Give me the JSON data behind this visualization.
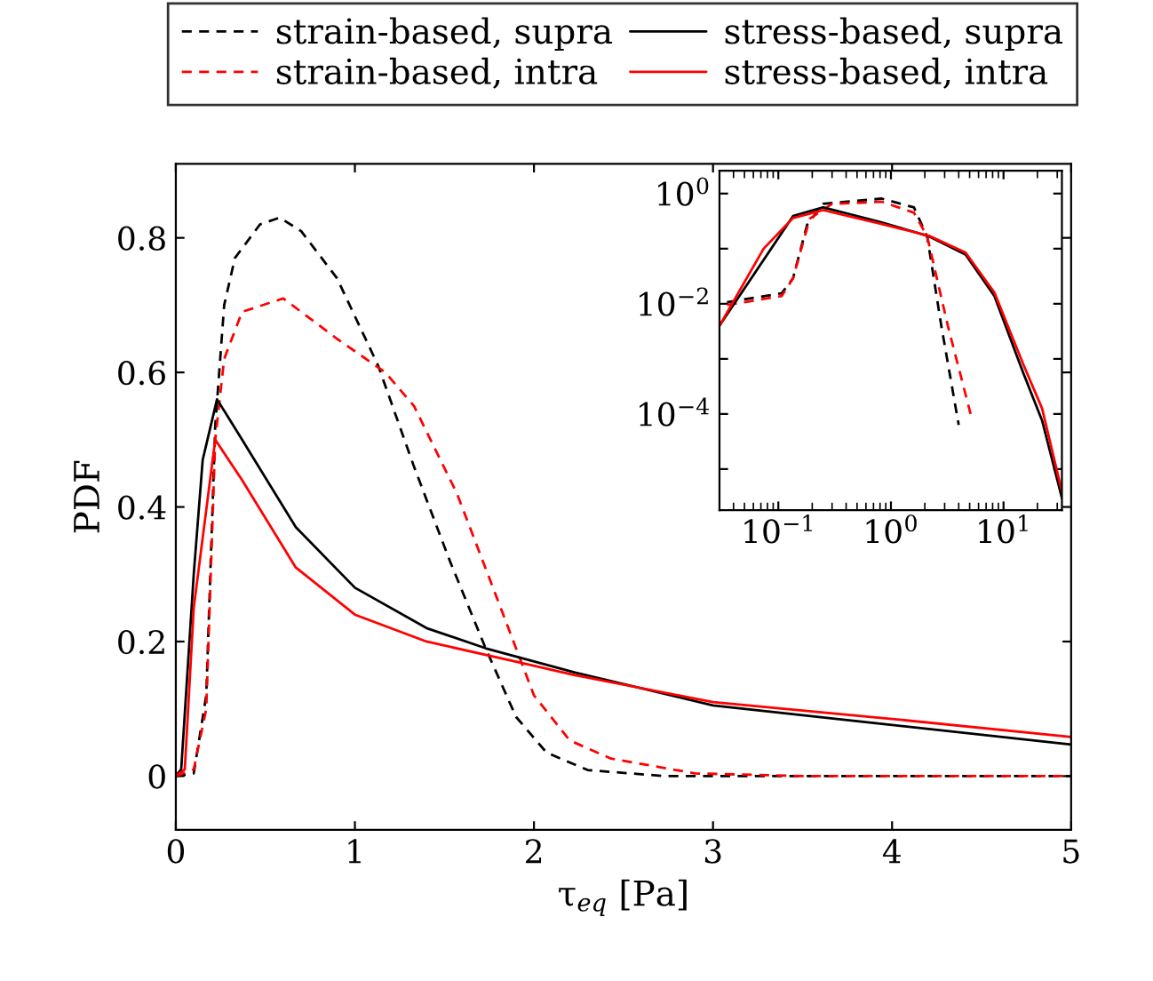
{
  "chart_data": [
    {
      "type": "line",
      "xlabel": "τ$_{eq}$ [Pa]",
      "ylabel": "PDF",
      "xlim": [
        0,
        5
      ],
      "ylim": [
        -0.08,
        0.91
      ],
      "xticks": [
        0,
        1,
        2,
        3,
        4,
        5
      ],
      "yticks": [
        0,
        0.2,
        0.4,
        0.6,
        0.8
      ],
      "grid": false,
      "legend": "top",
      "series": [
        {
          "name": "strain-based, supra",
          "color": "#000000",
          "line_style": "dashed",
          "x": [
            0,
            0.1,
            0.17,
            0.22,
            0.27,
            0.33,
            0.47,
            0.58,
            0.7,
            0.9,
            1.13,
            1.33,
            1.53,
            1.73,
            1.9,
            2.07,
            2.3,
            2.73,
            3.5,
            5
          ],
          "values": [
            0,
            0.004,
            0.12,
            0.52,
            0.7,
            0.77,
            0.82,
            0.83,
            0.81,
            0.74,
            0.61,
            0.46,
            0.32,
            0.19,
            0.088,
            0.035,
            0.009,
            0,
            0,
            0
          ]
        },
        {
          "name": "strain-based, intra",
          "color": "#ff0000",
          "line_style": "dashed",
          "x": [
            0,
            0.1,
            0.17,
            0.22,
            0.27,
            0.37,
            0.6,
            0.9,
            1.17,
            1.33,
            1.57,
            1.8,
            2.0,
            2.2,
            2.43,
            2.9,
            3.5,
            5
          ],
          "values": [
            0,
            0.01,
            0.1,
            0.5,
            0.62,
            0.69,
            0.71,
            0.65,
            0.6,
            0.55,
            0.42,
            0.26,
            0.12,
            0.053,
            0.026,
            0.004,
            0,
            0
          ]
        },
        {
          "name": "stress-based, supra",
          "color": "#000000",
          "line_style": "solid",
          "x": [
            0,
            0.03,
            0.1,
            0.15,
            0.23,
            0.37,
            0.67,
            1.0,
            1.4,
            1.73,
            2.23,
            3.0,
            4.0,
            5.0
          ],
          "values": [
            0,
            0.01,
            0.3,
            0.47,
            0.56,
            0.5,
            0.37,
            0.28,
            0.22,
            0.19,
            0.154,
            0.105,
            0.076,
            0.047
          ]
        },
        {
          "name": "stress-based, intra",
          "color": "#ff0000",
          "line_style": "solid",
          "x": [
            0,
            0.05,
            0.1,
            0.22,
            0.37,
            0.67,
            1.0,
            1.4,
            1.9,
            2.23,
            3.0,
            4.0,
            5.0
          ],
          "values": [
            0,
            0.01,
            0.25,
            0.5,
            0.44,
            0.31,
            0.24,
            0.2,
            0.17,
            0.15,
            0.11,
            0.085,
            0.058
          ]
        }
      ]
    },
    {
      "type": "line",
      "log": "xy",
      "xlim": [
        0.03,
        33
      ],
      "ylim": [
        1.8e-06,
        2.6
      ],
      "grid": false,
      "xticks": [
        {
          "value": 0.1,
          "label": "10$^{−1}$"
        },
        {
          "value": 1,
          "label": "10$^{0}$"
        },
        {
          "value": 10,
          "label": "10$^{1}$"
        }
      ],
      "yticks": [
        {
          "value": 1e-05,
          "label": null
        },
        {
          "value": 0.0001,
          "label": "10$^{−4}$"
        },
        {
          "value": 0.001,
          "label": null
        },
        {
          "value": 0.01,
          "label": "10$^{−2}$"
        },
        {
          "value": 0.1,
          "label": null
        },
        {
          "value": 1,
          "label": "10$^{0}$"
        }
      ],
      "series": [
        {
          "color": "#000000",
          "line_style": "dashed",
          "x": [
            0.035,
            0.107,
            0.135,
            0.18,
            0.25,
            0.83,
            1.6,
            2.1,
            2.8,
            4.0
          ],
          "values": [
            0.0107,
            0.0155,
            0.029,
            0.27,
            0.65,
            0.81,
            0.56,
            0.166,
            0.004,
            6.3e-05
          ]
        },
        {
          "color": "#ff0000",
          "line_style": "dashed",
          "x": [
            0.035,
            0.107,
            0.135,
            0.19,
            0.3,
            0.83,
            1.6,
            2.1,
            3.2,
            5.1
          ],
          "values": [
            0.0095,
            0.0138,
            0.029,
            0.35,
            0.65,
            0.71,
            0.45,
            0.166,
            0.004,
            0.0001
          ]
        },
        {
          "color": "#000000",
          "line_style": "solid",
          "x": [
            0.03,
            0.135,
            0.25,
            0.83,
            2.2,
            4.6,
            8.3,
            15,
            22,
            33
          ],
          "values": [
            0.004,
            0.39,
            0.56,
            0.3,
            0.166,
            0.078,
            0.0138,
            0.00055,
            7.6e-05,
            3e-06
          ]
        },
        {
          "color": "#ff0000",
          "line_style": "solid",
          "x": [
            0.03,
            0.074,
            0.135,
            0.25,
            0.83,
            2.2,
            4.6,
            8.3,
            15,
            22,
            33
          ],
          "values": [
            0.004,
            0.1,
            0.36,
            0.5,
            0.28,
            0.17,
            0.085,
            0.016,
            0.00079,
            0.000126,
            3.9e-06
          ]
        }
      ]
    }
  ]
}
